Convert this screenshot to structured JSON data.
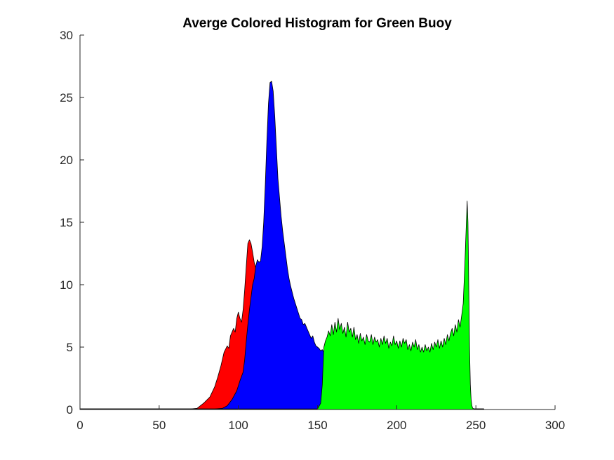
{
  "chart_data": {
    "type": "area",
    "title": "Averge Colored Histogram for Green Buoy",
    "xlabel": "",
    "ylabel": "",
    "xlim": [
      0,
      300
    ],
    "ylim": [
      0,
      30
    ],
    "xticks": [
      0,
      50,
      100,
      150,
      200,
      250,
      300
    ],
    "yticks": [
      0,
      5,
      10,
      15,
      20,
      25,
      30
    ],
    "grid": false,
    "legend": "none",
    "series": [
      {
        "color": "#ff0000",
        "points": [
          [
            0,
            0.05
          ],
          [
            70,
            0.05
          ],
          [
            74,
            0.1
          ],
          [
            78,
            0.5
          ],
          [
            82,
            1
          ],
          [
            85,
            1.8
          ],
          [
            87,
            2.6
          ],
          [
            89,
            3.5
          ],
          [
            91,
            4.6
          ],
          [
            93,
            5.1
          ],
          [
            94,
            4.9
          ],
          [
            95,
            5.9
          ],
          [
            97,
            6.5
          ],
          [
            98,
            6.2
          ],
          [
            99,
            7.3
          ],
          [
            100,
            7.8
          ],
          [
            101,
            7.3
          ],
          [
            102,
            7.0
          ],
          [
            103,
            8.0
          ],
          [
            104,
            9.6
          ],
          [
            105,
            11.5
          ],
          [
            106,
            13.3
          ],
          [
            107,
            13.6
          ],
          [
            108,
            13.3
          ],
          [
            109,
            12.6
          ],
          [
            110,
            11.8
          ],
          [
            111,
            11.3
          ],
          [
            112,
            10.9
          ],
          [
            113,
            10.5
          ],
          [
            114,
            10.0
          ],
          [
            115,
            9.5
          ],
          [
            116,
            8.9
          ],
          [
            118,
            7.5
          ],
          [
            120,
            6.2
          ],
          [
            122,
            5.0
          ],
          [
            124,
            4.0
          ],
          [
            126,
            3.1
          ],
          [
            128,
            2.3
          ],
          [
            130,
            1.6
          ],
          [
            133,
            0.9
          ],
          [
            136,
            0.4
          ],
          [
            140,
            0.1
          ],
          [
            145,
            0.05
          ],
          [
            255,
            0.05
          ]
        ]
      },
      {
        "color": "#0000ff",
        "points": [
          [
            0,
            0.05
          ],
          [
            85,
            0.05
          ],
          [
            90,
            0.1
          ],
          [
            93,
            0.3
          ],
          [
            96,
            0.8
          ],
          [
            99,
            1.5
          ],
          [
            101,
            2.3
          ],
          [
            103,
            3.0
          ],
          [
            104,
            4.0
          ],
          [
            105,
            5.5
          ],
          [
            106,
            6.8
          ],
          [
            107,
            8.0
          ],
          [
            108,
            9.0
          ],
          [
            109,
            10.0
          ],
          [
            110,
            10.5
          ],
          [
            111,
            11.5
          ],
          [
            112,
            12.0
          ],
          [
            113,
            11.8
          ],
          [
            114,
            11.9
          ],
          [
            115,
            13.0
          ],
          [
            116,
            15.0
          ],
          [
            117,
            18.0
          ],
          [
            118,
            21.5
          ],
          [
            119,
            24.5
          ],
          [
            120,
            26.2
          ],
          [
            121,
            26.3
          ],
          [
            122,
            25.5
          ],
          [
            123,
            23.5
          ],
          [
            124,
            21.0
          ],
          [
            125,
            18.5
          ],
          [
            126,
            17.0
          ],
          [
            127,
            15.5
          ],
          [
            128,
            14.3
          ],
          [
            129,
            13.3
          ],
          [
            130,
            12.3
          ],
          [
            131,
            11.3
          ],
          [
            132,
            10.5
          ],
          [
            133,
            9.9
          ],
          [
            134,
            9.4
          ],
          [
            135,
            8.9
          ],
          [
            136,
            8.5
          ],
          [
            137,
            8.1
          ],
          [
            138,
            7.7
          ],
          [
            139,
            7.3
          ],
          [
            140,
            7.2
          ],
          [
            141,
            6.8
          ],
          [
            142,
            6.9
          ],
          [
            143,
            6.6
          ],
          [
            144,
            6.3
          ],
          [
            145,
            6.0
          ],
          [
            146,
            5.7
          ],
          [
            147,
            5.9
          ],
          [
            148,
            5.4
          ],
          [
            149,
            5.1
          ],
          [
            150,
            5.0
          ],
          [
            151,
            4.9
          ],
          [
            152,
            4.7
          ],
          [
            153,
            4.8
          ],
          [
            154,
            4.6
          ],
          [
            155,
            4.4
          ],
          [
            156,
            4.5
          ],
          [
            157,
            4.3
          ],
          [
            158,
            4.2
          ],
          [
            159,
            4.0
          ],
          [
            160,
            4.0
          ],
          [
            161,
            3.8
          ],
          [
            162,
            3.6
          ],
          [
            163,
            3.4
          ],
          [
            164,
            3.1
          ],
          [
            165,
            2.8
          ],
          [
            166,
            2.5
          ],
          [
            167,
            2.2
          ],
          [
            168,
            1.9
          ],
          [
            169,
            1.6
          ],
          [
            170,
            1.3
          ],
          [
            171,
            1.0
          ],
          [
            172,
            0.7
          ],
          [
            173,
            0.4
          ],
          [
            174,
            0.2
          ],
          [
            176,
            0.05
          ],
          [
            255,
            0.05
          ]
        ]
      },
      {
        "color": "#00ff00",
        "points": [
          [
            0,
            0.05
          ],
          [
            150,
            0.05
          ],
          [
            152,
            0.5
          ],
          [
            153,
            2.0
          ],
          [
            154,
            5.0
          ],
          [
            155,
            5.5
          ],
          [
            156,
            5.8
          ],
          [
            157,
            6.3
          ],
          [
            158,
            5.9
          ],
          [
            159,
            6.8
          ],
          [
            160,
            6.0
          ],
          [
            161,
            7.0
          ],
          [
            162,
            6.2
          ],
          [
            163,
            7.3
          ],
          [
            164,
            6.4
          ],
          [
            165,
            6.9
          ],
          [
            166,
            6.1
          ],
          [
            167,
            6.6
          ],
          [
            168,
            5.8
          ],
          [
            169,
            7.0
          ],
          [
            170,
            6.2
          ],
          [
            171,
            6.5
          ],
          [
            172,
            5.8
          ],
          [
            173,
            6.6
          ],
          [
            174,
            5.6
          ],
          [
            175,
            6.0
          ],
          [
            176,
            5.3
          ],
          [
            177,
            6.1
          ],
          [
            178,
            5.5
          ],
          [
            179,
            5.8
          ],
          [
            180,
            5.2
          ],
          [
            181,
            6.0
          ],
          [
            182,
            5.5
          ],
          [
            183,
            5.4
          ],
          [
            184,
            6.0
          ],
          [
            185,
            5.2
          ],
          [
            186,
            5.8
          ],
          [
            187,
            5.4
          ],
          [
            188,
            5.6
          ],
          [
            189,
            5.0
          ],
          [
            190,
            5.7
          ],
          [
            191,
            5.2
          ],
          [
            192,
            5.9
          ],
          [
            193,
            5.3
          ],
          [
            194,
            5.7
          ],
          [
            195,
            4.9
          ],
          [
            196,
            5.4
          ],
          [
            197,
            5.1
          ],
          [
            198,
            5.9
          ],
          [
            199,
            5.2
          ],
          [
            200,
            5.5
          ],
          [
            201,
            4.9
          ],
          [
            202,
            5.5
          ],
          [
            203,
            5.0
          ],
          [
            204,
            5.7
          ],
          [
            205,
            5.3
          ],
          [
            206,
            5.6
          ],
          [
            207,
            4.8
          ],
          [
            208,
            5.2
          ],
          [
            209,
            4.7
          ],
          [
            210,
            5.4
          ],
          [
            211,
            5.0
          ],
          [
            212,
            5.6
          ],
          [
            213,
            4.8
          ],
          [
            214,
            5.2
          ],
          [
            215,
            4.6
          ],
          [
            216,
            5.0
          ],
          [
            217,
            4.6
          ],
          [
            218,
            5.2
          ],
          [
            219,
            4.7
          ],
          [
            220,
            5.0
          ],
          [
            221,
            4.6
          ],
          [
            222,
            5.3
          ],
          [
            223,
            4.8
          ],
          [
            224,
            5.4
          ],
          [
            225,
            5.0
          ],
          [
            226,
            5.6
          ],
          [
            227,
            4.9
          ],
          [
            228,
            5.5
          ],
          [
            229,
            5.0
          ],
          [
            230,
            5.7
          ],
          [
            231,
            5.2
          ],
          [
            232,
            6.0
          ],
          [
            233,
            5.5
          ],
          [
            234,
            6.1
          ],
          [
            235,
            6.5
          ],
          [
            236,
            5.9
          ],
          [
            237,
            6.8
          ],
          [
            238,
            6.2
          ],
          [
            239,
            7.2
          ],
          [
            240,
            6.6
          ],
          [
            241,
            7.5
          ],
          [
            242,
            8.5
          ],
          [
            243,
            11.5
          ],
          [
            244,
            15.0
          ],
          [
            244.5,
            16.7
          ],
          [
            245,
            15.0
          ],
          [
            245.5,
            10.0
          ],
          [
            246,
            5.0
          ],
          [
            246.5,
            2.0
          ],
          [
            247,
            0.8
          ],
          [
            247.5,
            0.3
          ],
          [
            248,
            0.1
          ],
          [
            249,
            0.05
          ],
          [
            255,
            0.05
          ]
        ]
      }
    ]
  }
}
